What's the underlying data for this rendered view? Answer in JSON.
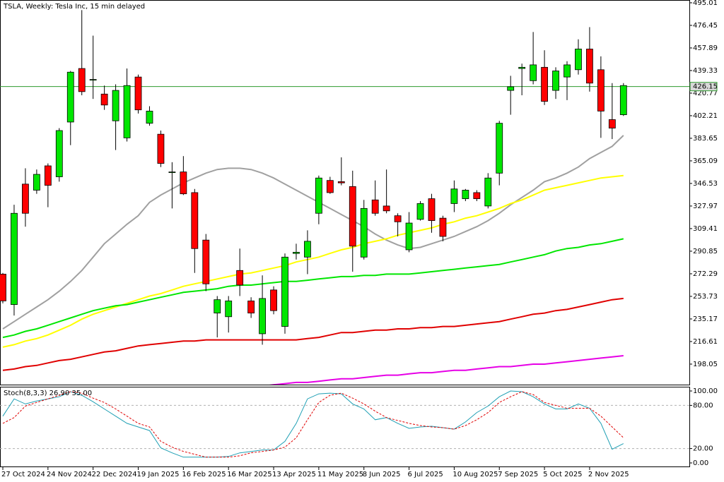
{
  "chart_data": [
    {
      "type": "candlestick",
      "title": "TSLA, Weekly:  Tesla Inc, 15 min delayed",
      "categories": [
        "27 Oct 2024",
        null,
        null,
        null,
        "24 Nov 2024",
        null,
        null,
        null,
        "22 Dec 2024",
        null,
        null,
        null,
        "19 Jan 2025",
        null,
        null,
        null,
        "16 Feb 2025",
        null,
        null,
        null,
        "16 Mar 2025",
        null,
        null,
        null,
        "13 Apr 2025",
        null,
        null,
        null,
        "11 May 2025",
        null,
        null,
        null,
        "8 Jun 2025",
        null,
        null,
        null,
        "6 Jul 2025",
        null,
        null,
        null,
        "10 Aug 2025",
        null,
        null,
        null,
        "7 Sep 2025",
        null,
        null,
        null,
        "5 Oct 2025",
        null,
        null,
        null,
        "2 Nov 2025",
        null,
        null,
        null
      ],
      "open": [
        272,
        247,
        346,
        341,
        361,
        352,
        397,
        441,
        432,
        420,
        398,
        384,
        434,
        396,
        387,
        356,
        356,
        339,
        300,
        240,
        237,
        275,
        250,
        223,
        259,
        229,
        289,
        286,
        322,
        349,
        348,
        344,
        286,
        333,
        328,
        320,
        292,
        317,
        334,
        318,
        330,
        334,
        339,
        328,
        355,
        423,
        441,
        431,
        442,
        423,
        434,
        440,
        457,
        440,
        399,
        403
      ],
      "high": [
        273,
        329,
        359,
        358,
        363,
        392,
        439,
        489,
        468,
        427,
        428,
        441,
        436,
        410,
        390,
        364,
        369,
        342,
        305,
        254,
        254,
        293,
        253,
        271,
        262,
        289,
        297,
        308,
        353,
        352,
        368,
        357,
        333,
        349,
        358,
        322,
        323,
        332,
        338,
        320,
        349,
        342,
        341,
        355,
        398,
        435,
        445,
        471,
        456,
        442,
        447,
        465,
        475,
        451,
        429,
        429
      ],
      "low": [
        248,
        238,
        311,
        338,
        327,
        348,
        378,
        419,
        416,
        407,
        374,
        381,
        404,
        394,
        360,
        326,
        337,
        273,
        258,
        220,
        224,
        254,
        236,
        214,
        239,
        223,
        284,
        272,
        313,
        338,
        345,
        274,
        284,
        320,
        322,
        303,
        290,
        316,
        306,
        299,
        323,
        332,
        332,
        326,
        345,
        403,
        419,
        428,
        411,
        416,
        415,
        436,
        422,
        384,
        383,
        402
      ],
      "close": [
        250,
        322,
        322,
        354,
        345,
        390,
        438,
        422,
        432,
        411,
        423,
        427,
        407,
        406,
        363,
        356,
        338,
        293,
        264,
        251,
        250,
        263,
        240,
        252,
        242,
        286,
        290,
        299,
        351,
        339,
        347,
        295,
        326,
        322,
        324,
        315,
        314,
        330,
        316,
        303,
        342,
        341,
        334,
        351,
        396,
        426,
        442,
        444,
        414,
        439,
        444,
        457,
        429,
        406,
        392,
        427
      ],
      "up_color": "#00e600",
      "down_color": "#ff0000",
      "series": [
        {
          "color": "#a0a0a0",
          "values": [
            227,
            233,
            239,
            245,
            251,
            258,
            266,
            275,
            286,
            297,
            305,
            313,
            320,
            331,
            337,
            342,
            347,
            351,
            355,
            358,
            359,
            359,
            358,
            355,
            351,
            346,
            341,
            336,
            331,
            326,
            321,
            316,
            311,
            305,
            300,
            296,
            293,
            294,
            297,
            300,
            303,
            307,
            311,
            316,
            322,
            329,
            335,
            341,
            348,
            351,
            355,
            360,
            367,
            372,
            377,
            386
          ]
        },
        {
          "color": "#ffff00",
          "values": [
            212,
            214,
            217,
            219,
            222,
            226,
            230,
            235,
            239,
            242,
            245,
            248,
            251,
            254,
            256,
            259,
            262,
            264,
            266,
            268,
            270,
            272,
            273,
            275,
            277,
            279,
            282,
            284,
            286,
            289,
            292,
            294,
            297,
            299,
            301,
            304,
            306,
            308,
            310,
            313,
            315,
            318,
            320,
            323,
            326,
            330,
            333,
            337,
            341,
            343,
            345,
            347,
            349,
            351,
            352,
            353
          ]
        },
        {
          "color": "#00e600",
          "values": [
            220,
            222,
            225,
            227,
            230,
            233,
            236,
            239,
            242,
            244,
            246,
            247,
            249,
            251,
            253,
            255,
            257,
            258,
            259,
            260,
            262,
            263,
            263,
            264,
            265,
            266,
            266,
            267,
            268,
            269,
            270,
            270,
            271,
            271,
            272,
            272,
            272,
            273,
            274,
            275,
            276,
            277,
            278,
            279,
            280,
            282,
            284,
            286,
            288,
            291,
            293,
            294,
            296,
            297,
            299,
            301
          ]
        },
        {
          "color": "#e00000",
          "values": [
            193,
            194,
            196,
            197,
            199,
            201,
            202,
            204,
            206,
            208,
            209,
            211,
            213,
            214,
            215,
            216,
            217,
            217,
            218,
            218,
            218,
            218,
            218,
            218,
            218,
            218,
            218,
            219,
            220,
            222,
            224,
            224,
            225,
            226,
            226,
            227,
            227,
            228,
            228,
            229,
            229,
            230,
            231,
            232,
            233,
            235,
            237,
            239,
            240,
            242,
            243,
            245,
            247,
            249,
            251,
            252
          ]
        },
        {
          "color": "#e600e6",
          "values": [
            null,
            null,
            null,
            null,
            null,
            null,
            null,
            null,
            null,
            null,
            null,
            null,
            null,
            null,
            null,
            null,
            null,
            null,
            null,
            null,
            null,
            null,
            null,
            180,
            181,
            182,
            183,
            183,
            184,
            185,
            186,
            186,
            187,
            188,
            189,
            189,
            190,
            191,
            191,
            192,
            193,
            193,
            194,
            195,
            196,
            196,
            197,
            198,
            198,
            199,
            200,
            201,
            202,
            203,
            204,
            205
          ]
        }
      ],
      "hline": {
        "value": 426.15,
        "color": "#2e9a2e"
      },
      "ylim": [
        181.2,
        497.3
      ],
      "yticks": [
        495.01,
        476.45,
        457.89,
        439.33,
        420.77,
        402.21,
        383.65,
        365.09,
        346.53,
        327.97,
        309.41,
        290.85,
        272.29,
        253.73,
        235.17,
        216.61,
        198.05
      ]
    },
    {
      "type": "line",
      "title": "Stoch(8,3,3) 26.90 35.00",
      "series": [
        {
          "color": "#1e9fb4",
          "dash": false,
          "values": [
            65,
            89,
            82,
            86,
            89,
            92,
            99,
            94,
            85,
            75,
            65,
            55,
            50,
            45,
            21,
            14,
            8,
            8,
            8,
            8,
            9,
            14,
            16,
            18,
            18,
            30,
            55,
            89,
            96,
            97,
            96,
            82,
            75,
            60,
            63,
            55,
            48,
            50,
            51,
            49,
            47,
            57,
            70,
            79,
            92,
            100,
            99,
            92,
            82,
            75,
            75,
            82,
            76,
            55,
            19,
            26.9
          ]
        },
        {
          "color": "#e00000",
          "dash": true,
          "values": [
            55,
            63,
            79,
            84,
            89,
            94,
            99,
            97,
            90,
            84,
            75,
            65,
            55,
            50,
            30,
            22,
            16,
            12,
            8,
            8,
            8,
            10,
            14,
            16,
            18,
            22,
            35,
            60,
            84,
            94,
            97,
            90,
            82,
            72,
            63,
            59,
            55,
            52,
            50,
            49,
            47,
            52,
            60,
            70,
            84,
            92,
            99,
            95,
            84,
            80,
            76,
            76,
            76,
            65,
            50,
            35
          ]
        }
      ],
      "levels": [
        80,
        20
      ],
      "ylim": [
        -5.9,
        105.9
      ],
      "yticks": [
        {
          "value": 100,
          "label": "100.00"
        },
        {
          "value": 80,
          "label": "80.00"
        },
        {
          "value": 20,
          "label": "20.00"
        },
        {
          "value": 0,
          "label": "0.00"
        }
      ]
    }
  ]
}
